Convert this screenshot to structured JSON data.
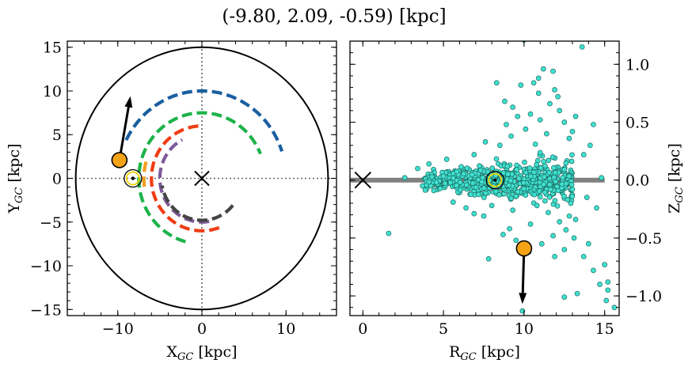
{
  "title": "(-9.80, 2.09, -0.59) [kpc]",
  "colors": {
    "circle": "#000000",
    "arm_blue": "#1a5fa0",
    "arm_green": "#1db34a",
    "arm_orange": "#f2a020",
    "arm_red": "#ef3d14",
    "arm_purple": "#7f5a9a",
    "arm_dark": "#444444",
    "star_fill": "#f5a316",
    "scatter_fill": "#40e0d0",
    "disk_line": "#808080",
    "dotted": "#666666"
  },
  "chart_data": [
    {
      "type": "line",
      "description_role": "left-panel",
      "xlabel": "X",
      "xlabel_sub": "GC",
      "xlabel_unit": " [kpc]",
      "ylabel": "Y",
      "ylabel_sub": "GC",
      "ylabel_unit": " [kpc]",
      "xlim": [
        -16,
        16
      ],
      "ylim": [
        -15.7,
        15.7
      ],
      "xticks": [
        -10,
        0,
        10
      ],
      "xtick_labels": [
        "−10",
        "0",
        "10"
      ],
      "yticks": [
        -15,
        -10,
        -5,
        0,
        5,
        10,
        15
      ],
      "ytick_labels": [
        "−15",
        "−10",
        "−5",
        "0",
        "5",
        "10",
        "15"
      ],
      "boundary_circle_radius": 15,
      "arms": [
        {
          "color_key": "arm_blue",
          "radius": 10.0,
          "start_deg": 154,
          "end_deg": 18
        },
        {
          "color_key": "arm_green",
          "radius": 7.5,
          "start_deg": 255,
          "end_deg": 22
        },
        {
          "color_key": "arm_orange",
          "radius": 6.9,
          "start_deg": 188,
          "end_deg": 162
        },
        {
          "color_key": "arm_red",
          "radius": 6.0,
          "start_deg": 290,
          "end_deg": 90
        },
        {
          "color_key": "arm_purple",
          "radius": 5.0,
          "start_deg": 280,
          "end_deg": 118
        },
        {
          "color_key": "arm_dark",
          "radius": 4.8,
          "start_deg": 320,
          "end_deg": 190
        }
      ],
      "galactic_center": {
        "x": 0,
        "y": 0,
        "marker": "x"
      },
      "sun": {
        "x": -8.2,
        "y": 0.0,
        "marker": "sun-symbol"
      },
      "star": {
        "x": -9.8,
        "y": 2.09
      },
      "velocity_arrow": {
        "x0": -9.8,
        "y0": 2.09,
        "x1": -8.5,
        "y1": 9.4
      }
    },
    {
      "type": "scatter",
      "description_role": "right-panel",
      "xlabel": "R",
      "xlabel_sub": "GC",
      "xlabel_unit": " [kpc]",
      "ylabel": "Z",
      "ylabel_sub": "GC",
      "ylabel_unit": " [kpc]",
      "xlim": [
        -0.8,
        15.9
      ],
      "ylim": [
        -1.17,
        1.2
      ],
      "xticks": [
        0,
        5,
        10,
        15
      ],
      "xtick_labels": [
        "0",
        "5",
        "10",
        "15"
      ],
      "yticks": [
        -1.0,
        -0.5,
        0.0,
        0.5,
        1.0
      ],
      "ytick_labels": [
        "−1.0",
        "−0.5",
        "0.0",
        "0.5",
        "1.0"
      ],
      "disk_line": {
        "x": [
          -0.8,
          15
        ],
        "y": [
          0,
          0
        ]
      },
      "galactic_center": {
        "x": 0,
        "y": 0,
        "marker": "x"
      },
      "sun": {
        "x": 8.2,
        "y": 0.0,
        "marker": "sun-symbol"
      },
      "star": {
        "x": 10.0,
        "y": -0.59
      },
      "velocity_arrow": {
        "x0": 10.0,
        "y0": -0.59,
        "x1": 9.9,
        "y1": -1.07
      },
      "points": [
        [
          10.0,
          1.21
        ],
        [
          13.6,
          1.15
        ],
        [
          11.2,
          0.96
        ],
        [
          11.8,
          0.94
        ],
        [
          10.9,
          0.88
        ],
        [
          10.6,
          0.84
        ],
        [
          9.8,
          0.82
        ],
        [
          8.3,
          0.84
        ],
        [
          11.9,
          0.78
        ],
        [
          10.9,
          0.75
        ],
        [
          12.1,
          0.72
        ],
        [
          8.8,
          0.68
        ],
        [
          9.3,
          0.63
        ],
        [
          11.6,
          0.66
        ],
        [
          12.2,
          0.6
        ],
        [
          13.2,
          0.55
        ],
        [
          14.3,
          0.48
        ],
        [
          13.0,
          0.42
        ],
        [
          12.5,
          0.5
        ],
        [
          11.0,
          0.52
        ],
        [
          10.4,
          0.57
        ],
        [
          9.6,
          0.55
        ],
        [
          8.9,
          0.48
        ],
        [
          10.1,
          0.44
        ],
        [
          9.2,
          0.38
        ],
        [
          11.4,
          0.4
        ],
        [
          12.8,
          0.36
        ],
        [
          7.6,
          0.33
        ],
        [
          8.5,
          0.3
        ],
        [
          10.7,
          0.31
        ],
        [
          14.1,
          0.3
        ],
        [
          13.7,
          0.22
        ],
        [
          6.9,
          0.22
        ],
        [
          4.1,
          0.14
        ],
        [
          3.4,
          0.1
        ],
        [
          5.2,
          0.18
        ],
        [
          13.9,
          -0.15
        ],
        [
          12.9,
          -0.2
        ],
        [
          14.5,
          -0.24
        ],
        [
          11.5,
          -0.28
        ],
        [
          12.2,
          -0.36
        ],
        [
          13.2,
          -0.34
        ],
        [
          12.6,
          -0.43
        ],
        [
          10.4,
          -0.38
        ],
        [
          11.8,
          -0.48
        ],
        [
          13.1,
          -0.5
        ],
        [
          14.0,
          -0.55
        ],
        [
          12.5,
          -0.6
        ],
        [
          13.7,
          -0.66
        ],
        [
          15.0,
          -0.73
        ],
        [
          14.3,
          -0.78
        ],
        [
          15.2,
          -0.88
        ],
        [
          14.7,
          -0.9
        ],
        [
          15.2,
          -0.95
        ],
        [
          13.3,
          -0.98
        ],
        [
          12.5,
          -1.01
        ],
        [
          15.1,
          -1.04
        ],
        [
          15.6,
          -1.1
        ],
        [
          9.9,
          -1.13
        ],
        [
          9.1,
          -0.42
        ],
        [
          8.7,
          -0.47
        ],
        [
          9.5,
          -0.52
        ],
        [
          11.1,
          -0.55
        ],
        [
          7.8,
          -0.68
        ],
        [
          10.3,
          -0.62
        ],
        [
          11.9,
          -0.66
        ],
        [
          1.6,
          -0.46
        ],
        [
          5.6,
          -0.19
        ],
        [
          6.4,
          -0.24
        ],
        [
          6.9,
          -0.29
        ],
        [
          7.5,
          -0.31
        ],
        [
          10.8,
          -0.22
        ],
        [
          11.3,
          -0.18
        ],
        [
          8.0,
          -0.22
        ],
        [
          9.3,
          -0.26
        ],
        [
          13.0,
          -0.08
        ],
        [
          14.8,
          0.02
        ],
        [
          3.7,
          -0.05
        ],
        [
          2.6,
          0.02
        ],
        [
          4.4,
          -0.09
        ]
      ],
      "core": {
        "x_min": 3.8,
        "x_max": 13.0,
        "sigma_z": 0.07,
        "count": 650
      }
    }
  ]
}
